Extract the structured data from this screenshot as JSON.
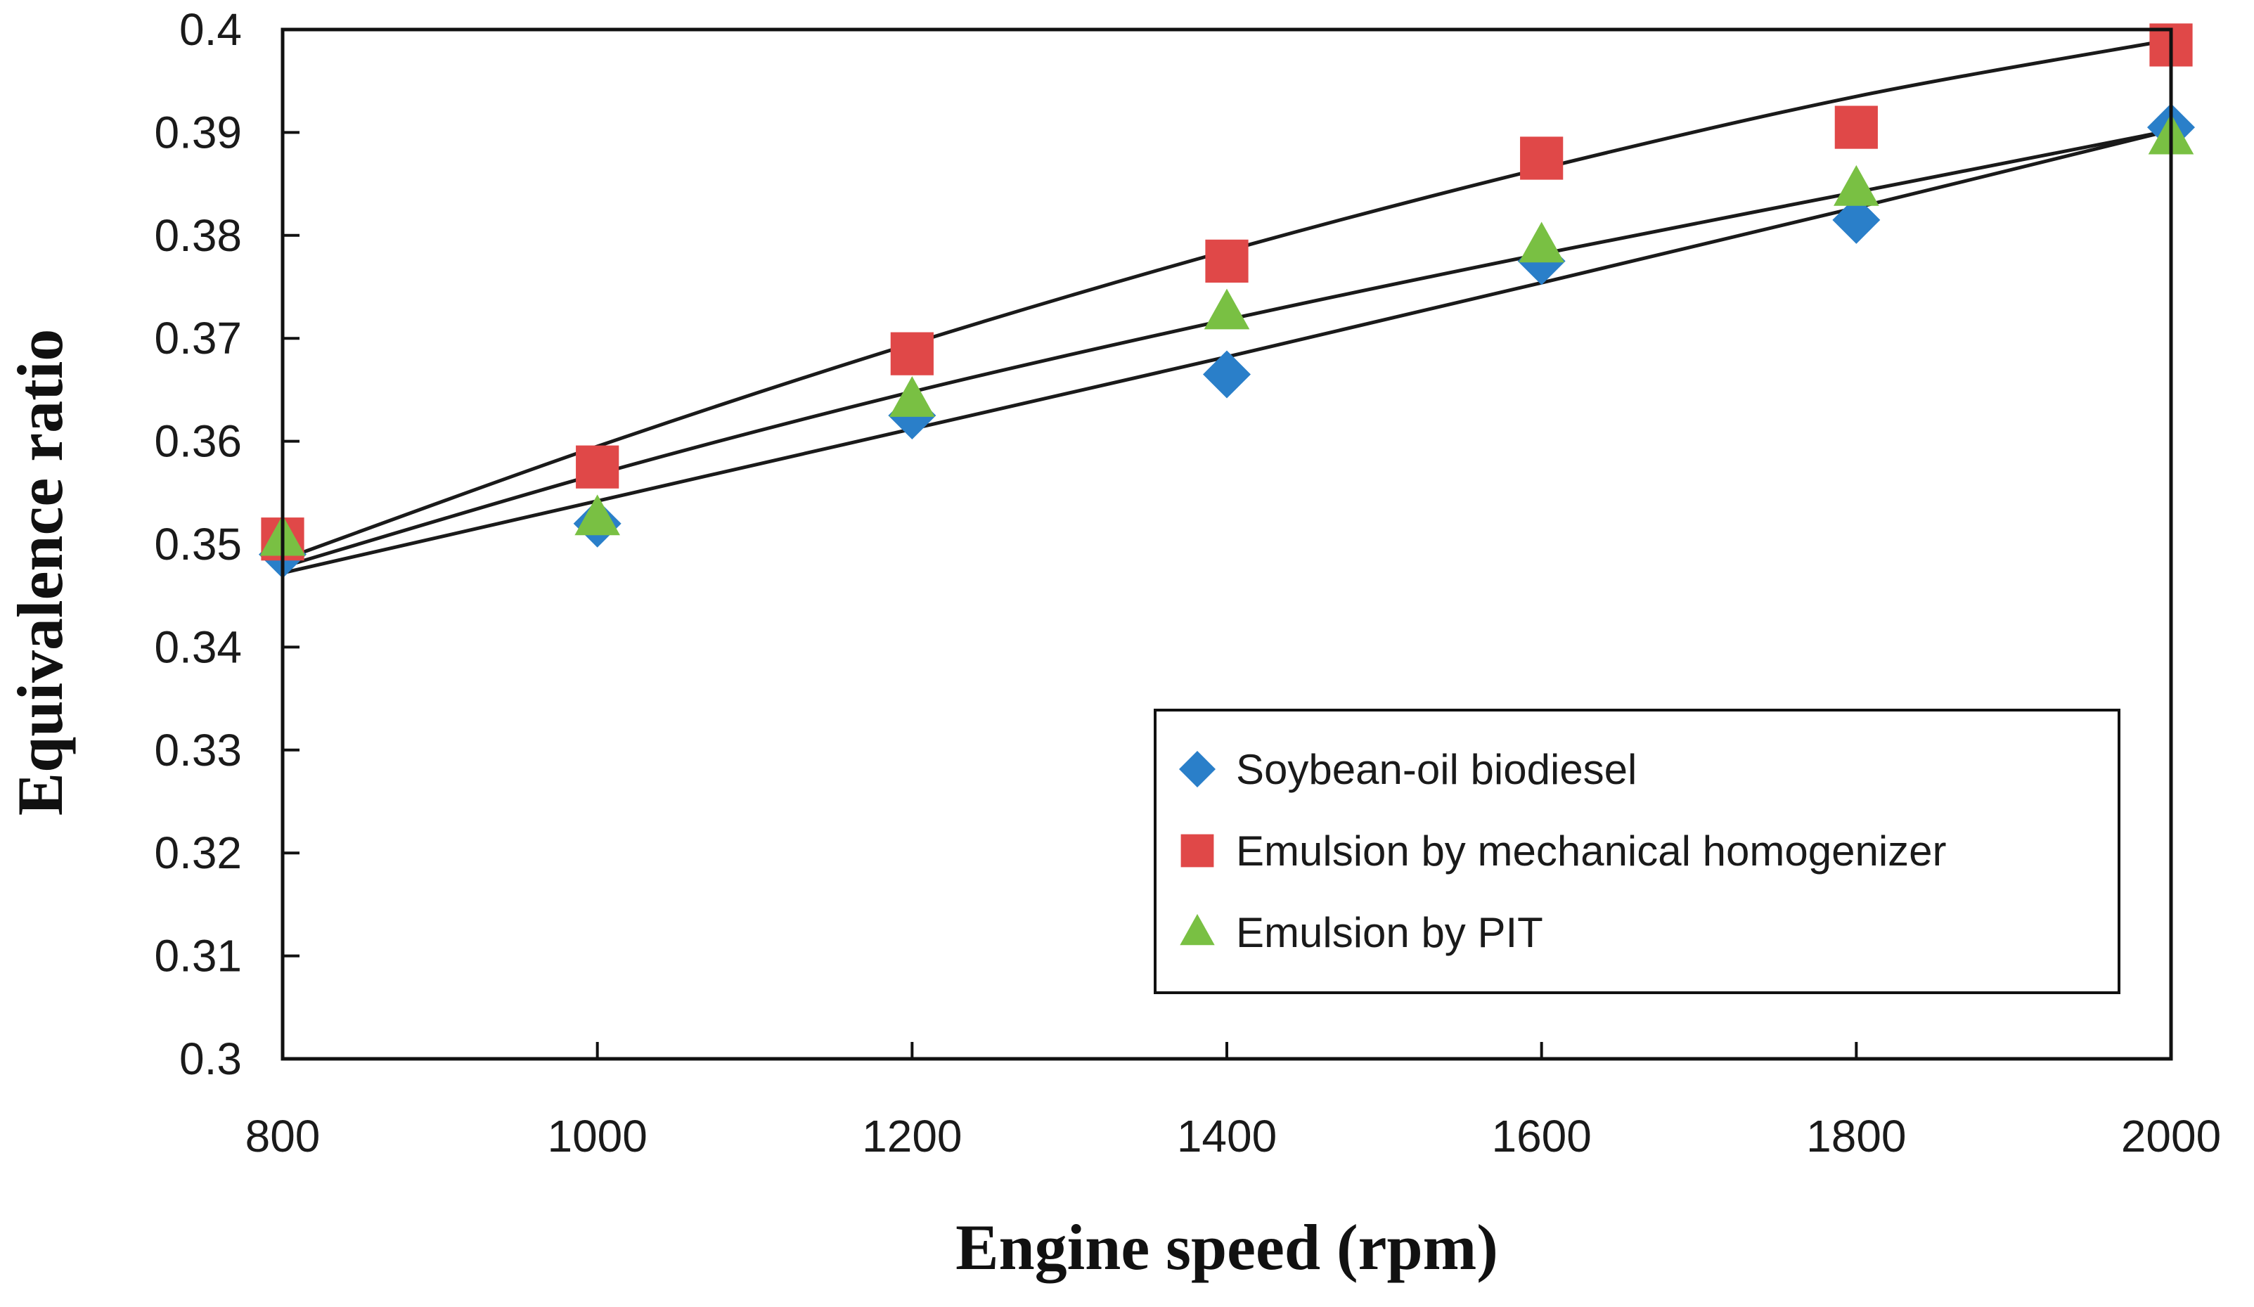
{
  "chart_data": {
    "type": "scatter",
    "xlabel": "Engine speed (rpm)",
    "ylabel": "Equivalence ratio",
    "xlim": [
      800,
      2000
    ],
    "ylim": [
      0.3,
      0.4
    ],
    "x_ticks": [
      800,
      1000,
      1200,
      1400,
      1600,
      1800,
      2000
    ],
    "x_tick_labels": [
      "800",
      "1000",
      "1200",
      "1400",
      "1600",
      "1800",
      "2000"
    ],
    "y_ticks": [
      0.3,
      0.31,
      0.32,
      0.33,
      0.34,
      0.35,
      0.36,
      0.37,
      0.38,
      0.39,
      0.4
    ],
    "y_tick_labels": [
      "0.3",
      "0.31",
      "0.32",
      "0.33",
      "0.34",
      "0.35",
      "0.36",
      "0.37",
      "0.38",
      "0.39",
      "0.4"
    ],
    "grid": false,
    "legend_position": "bottom-right",
    "x": [
      800,
      1000,
      1200,
      1400,
      1600,
      1800,
      2000
    ],
    "series": [
      {
        "name": "Soybean-oil biodiesel",
        "marker": "diamond",
        "color": "#2a7fc9",
        "values": [
          0.349,
          0.352,
          0.3625,
          0.3665,
          0.3775,
          0.3815,
          0.3905
        ],
        "trendline": [
          0.3472,
          0.3542,
          0.3612,
          0.3682,
          0.3754,
          0.3827,
          0.3902
        ]
      },
      {
        "name": "Emulsion by mechanical homogenizer",
        "marker": "square",
        "color": "#e04848",
        "values": [
          0.3505,
          0.3575,
          0.3685,
          0.3775,
          0.3875,
          0.3905,
          0.3985
        ],
        "trendline": [
          0.3485,
          0.3595,
          0.3695,
          0.3785,
          0.3865,
          0.3935,
          0.399
        ]
      },
      {
        "name": "Emulsion by PIT",
        "marker": "triangle",
        "color": "#79c043",
        "values": [
          0.3505,
          0.3525,
          0.364,
          0.3725,
          0.379,
          0.3845,
          0.3895
        ],
        "trendline": [
          0.3478,
          0.3568,
          0.3648,
          0.3718,
          0.3782,
          0.3842,
          0.3902
        ]
      }
    ],
    "trendline_color": "#1a1a1a"
  }
}
